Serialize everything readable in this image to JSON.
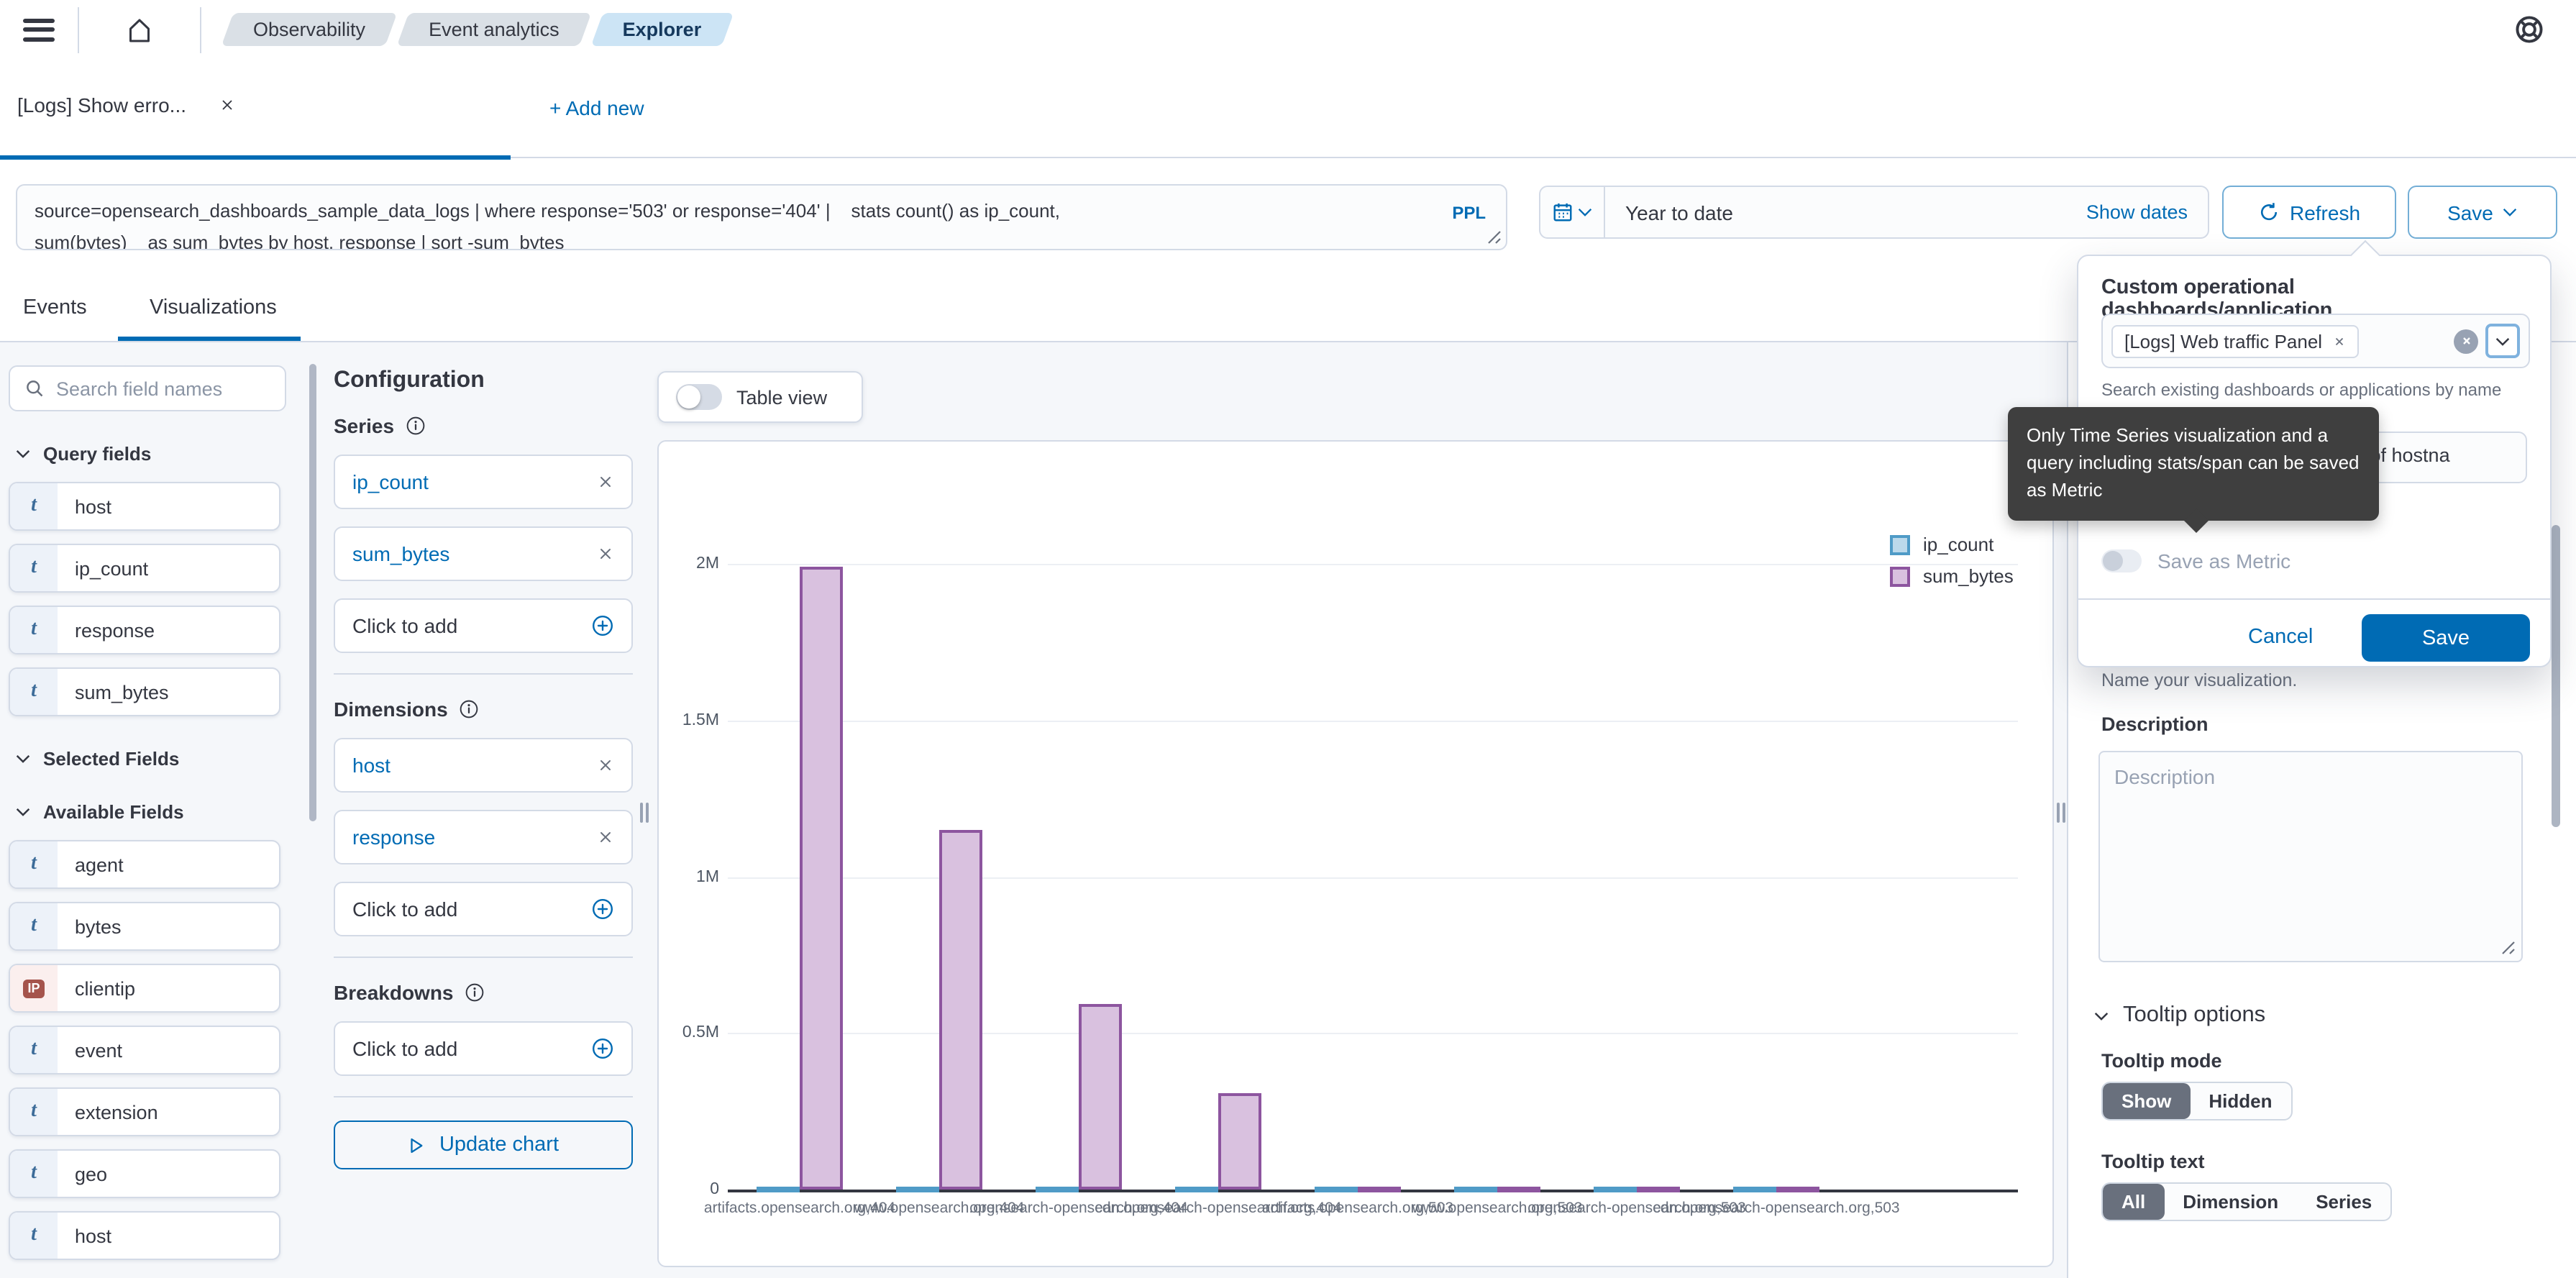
{
  "topbar": {
    "breadcrumbs": [
      {
        "label": "Observability",
        "active": false
      },
      {
        "label": "Event analytics",
        "active": false
      },
      {
        "label": "Explorer",
        "active": true
      }
    ]
  },
  "tabs": {
    "active_tab": "[Logs] Show erro...",
    "add_new": "+ Add new"
  },
  "query": {
    "text_line1": "source=opensearch_dashboards_sample_data_logs | where response='503' or response='404' |    stats count() as ip_count,",
    "text_line2": "sum(bytes)    as sum_bytes by host, response | sort -sum_bytes",
    "language_badge": "PPL"
  },
  "datepicker": {
    "value": "Year to date",
    "show_dates": "Show dates"
  },
  "actions": {
    "refresh": "Refresh",
    "save": "Save"
  },
  "view_tabs": [
    {
      "label": "Events",
      "active": false
    },
    {
      "label": "Visualizations",
      "active": true
    }
  ],
  "sidebar": {
    "search_placeholder": "Search field names",
    "sections": [
      {
        "title": "Query fields",
        "fields": [
          {
            "name": "host",
            "type": "t"
          },
          {
            "name": "ip_count",
            "type": "t"
          },
          {
            "name": "response",
            "type": "t"
          },
          {
            "name": "sum_bytes",
            "type": "t"
          }
        ]
      },
      {
        "title": "Selected Fields",
        "fields": []
      },
      {
        "title": "Available Fields",
        "fields": [
          {
            "name": "agent",
            "type": "t"
          },
          {
            "name": "bytes",
            "type": "t"
          },
          {
            "name": "clientip",
            "type": "ip"
          },
          {
            "name": "event",
            "type": "t"
          },
          {
            "name": "extension",
            "type": "t"
          },
          {
            "name": "geo",
            "type": "t"
          },
          {
            "name": "host",
            "type": "t"
          }
        ]
      }
    ]
  },
  "config": {
    "title": "Configuration",
    "groups": [
      {
        "title": "Series",
        "items": [
          "ip_count",
          "sum_bytes"
        ],
        "add_label": "Click to add"
      },
      {
        "title": "Dimensions",
        "items": [
          "host",
          "response"
        ],
        "add_label": "Click to add"
      },
      {
        "title": "Breakdowns",
        "items": [],
        "add_label": "Click to add"
      }
    ],
    "update_button": "Update chart"
  },
  "chart_panel": {
    "table_view_label": "Table view"
  },
  "chart_data": {
    "type": "bar",
    "title": "",
    "xlabel": "",
    "ylabel": "",
    "categories": [
      "artifacts.opensearch.org,404",
      "www.opensearch.org,404",
      "opensearch-opensearch.org,404",
      "cdn.opensearch-opensearch.org,404",
      "artifacts.opensearch.org,503",
      "www.opensearch.org,503",
      "opensearch-opensearch.org,503",
      "cdn.opensearch-opensearch.org,503"
    ],
    "series": [
      {
        "name": "ip_count",
        "color": "#BCD9EB",
        "border": "#4F9BC7",
        "values": [
          2000,
          1600,
          900,
          500,
          2100,
          1700,
          950,
          550
        ]
      },
      {
        "name": "sum_bytes",
        "color": "#D9C1DF",
        "border": "#8D559F",
        "values": [
          1990000,
          1150000,
          595000,
          310000,
          9000,
          8000,
          7000,
          6000
        ]
      }
    ],
    "yticks": [
      "0",
      "0.5M",
      "1M",
      "1.5M",
      "2M"
    ],
    "ylim": [
      0,
      2000000
    ],
    "grid": true,
    "legend_position": "top-right"
  },
  "right_panel": {
    "name_help": "Name your visualization.",
    "description_label": "Description",
    "description_placeholder": "Description",
    "tooltip_options_title": "Tooltip options",
    "tooltip_mode_label": "Tooltip mode",
    "tooltip_mode_options": [
      "Show",
      "Hidden"
    ],
    "tooltip_mode_selected": "Show",
    "tooltip_text_label": "Tooltip text",
    "tooltip_text_options": [
      "All",
      "Dimension",
      "Series"
    ],
    "tooltip_text_selected": "All"
  },
  "save_popover": {
    "title": "Custom operational dashboards/application",
    "selected_chip": "[Logs] Web traffic Panel",
    "combo_help": "Search existing dashboards or applications by name",
    "name_value_visible": "y list of hostna",
    "save_as_metric_label": "Save as Metric",
    "cancel_label": "Cancel",
    "save_label": "Save",
    "tooltip": "Only Time Series visualization and a query including stats/span can be saved as Metric"
  },
  "colors": {
    "accent_blue": "#006BB4",
    "border": "#D3DAE6",
    "page_bg": "#F5F7FA",
    "text": "#343741",
    "subtle_text": "#69707D",
    "series_ip_count_fill": "#BCD9EB",
    "series_ip_count_border": "#4F9BC7",
    "series_sum_bytes_fill": "#D9C1DF",
    "series_sum_bytes_border": "#8D559F",
    "tooltip_bg": "#3F3F3F"
  }
}
